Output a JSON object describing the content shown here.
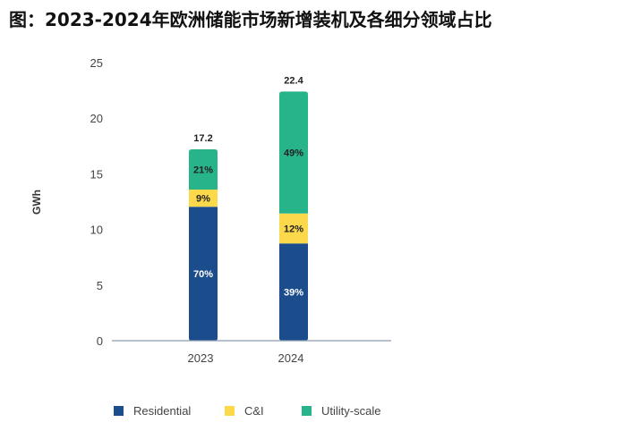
{
  "title": "图：2023-2024年欧洲储能市场新增装机及各细分领域占比",
  "chart_data": {
    "type": "bar",
    "stacked": true,
    "categories": [
      "2023",
      "2024"
    ],
    "totals": [
      "17.2",
      "22.4"
    ],
    "ylabel": "GWh",
    "ylim": [
      0,
      25
    ],
    "yticks": [
      "0",
      "5",
      "10",
      "15",
      "20",
      "25"
    ],
    "grid": false,
    "legend_position": "bottom",
    "series": [
      {
        "name": "Residential",
        "color": "#1b4d8c",
        "label_color": "#ffffff",
        "values": [
          12.04,
          8.74
        ],
        "labels": [
          "70%",
          "39%"
        ]
      },
      {
        "name": "C&I",
        "color": "#fcd94a",
        "label_color": "#222222",
        "values": [
          1.55,
          2.69
        ],
        "labels": [
          "9%",
          "12%"
        ]
      },
      {
        "name": "Utility-scale",
        "color": "#27b48a",
        "label_color": "#222222",
        "values": [
          3.61,
          10.97
        ],
        "labels": [
          "21%",
          "49%"
        ]
      }
    ]
  }
}
